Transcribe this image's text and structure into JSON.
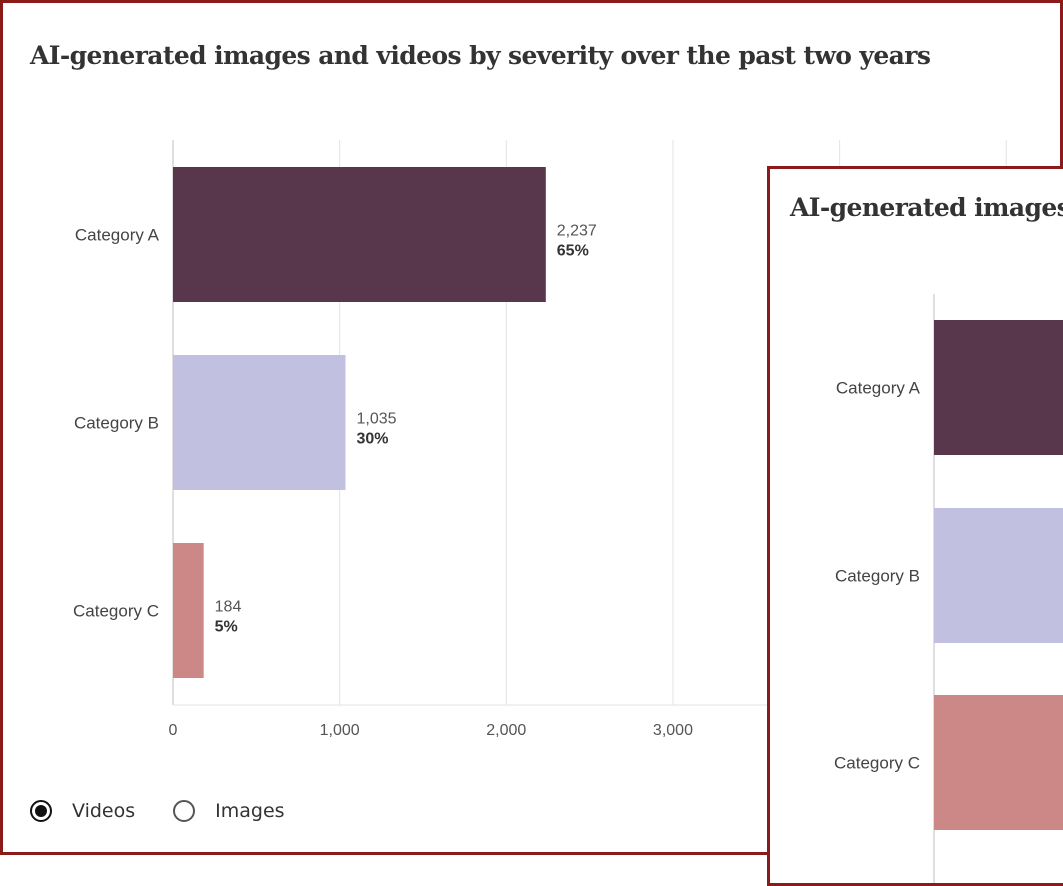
{
  "chart_data": [
    {
      "type": "bar",
      "orientation": "horizontal",
      "title": "AI-generated images and videos by severity over the past two years",
      "categories": [
        "Category A",
        "Category B",
        "Category C"
      ],
      "values": [
        2237,
        1035,
        184
      ],
      "value_labels": [
        "2,237",
        "1,035",
        "184"
      ],
      "percent_labels": [
        "65%",
        "30%",
        "5%"
      ],
      "colors": [
        "#58364c",
        "#c2c0e0",
        "#cc8886"
      ],
      "xlim": [
        0,
        3000
      ],
      "xticks": [
        0,
        1000,
        2000,
        3000
      ],
      "xtick_labels": [
        "0",
        "1,000",
        "2,000",
        "3,000"
      ],
      "grid": true,
      "legend": {
        "placement": "bottom-left",
        "options": [
          {
            "label": "Videos",
            "selected": true
          },
          {
            "label": "Images",
            "selected": false
          }
        ]
      }
    },
    {
      "type": "bar",
      "orientation": "horizontal",
      "title": "AI-generated images",
      "categories": [
        "Category A",
        "Category B",
        "Category C"
      ],
      "colors": [
        "#58364c",
        "#c2c0e0",
        "#cc8886"
      ]
    }
  ]
}
